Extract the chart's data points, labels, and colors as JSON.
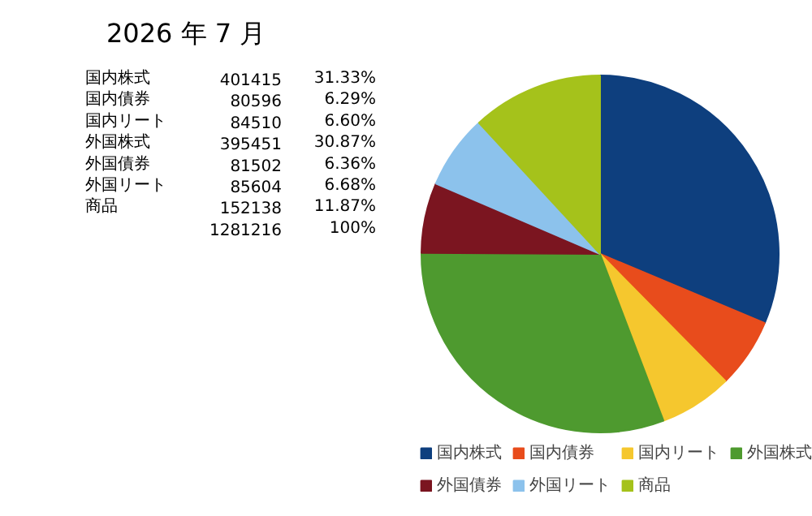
{
  "chart_data": {
    "type": "pie",
    "title": "2026 年 7 月",
    "categories": [
      "国内株式",
      "国内債券",
      "国内リート",
      "外国株式",
      "外国債券",
      "外国リート",
      "商品"
    ],
    "values": [
      31.33,
      6.29,
      6.6,
      30.87,
      6.36,
      6.68,
      11.87
    ],
    "colors": [
      "#0e3f7e",
      "#e84c1c",
      "#f5c72e",
      "#4e9a2f",
      "#7b1520",
      "#8cc2ec",
      "#a5c21b"
    ],
    "annotations": [
      "401415",
      "31.33%",
      "80596",
      "6.29%",
      "84510",
      "6.60%",
      "395451",
      "30.87%",
      "81502",
      "6.36%",
      "85604",
      "6.68%",
      "152138",
      "11.87%",
      "1281216",
      "100%"
    ],
    "legend": "bottom"
  }
}
